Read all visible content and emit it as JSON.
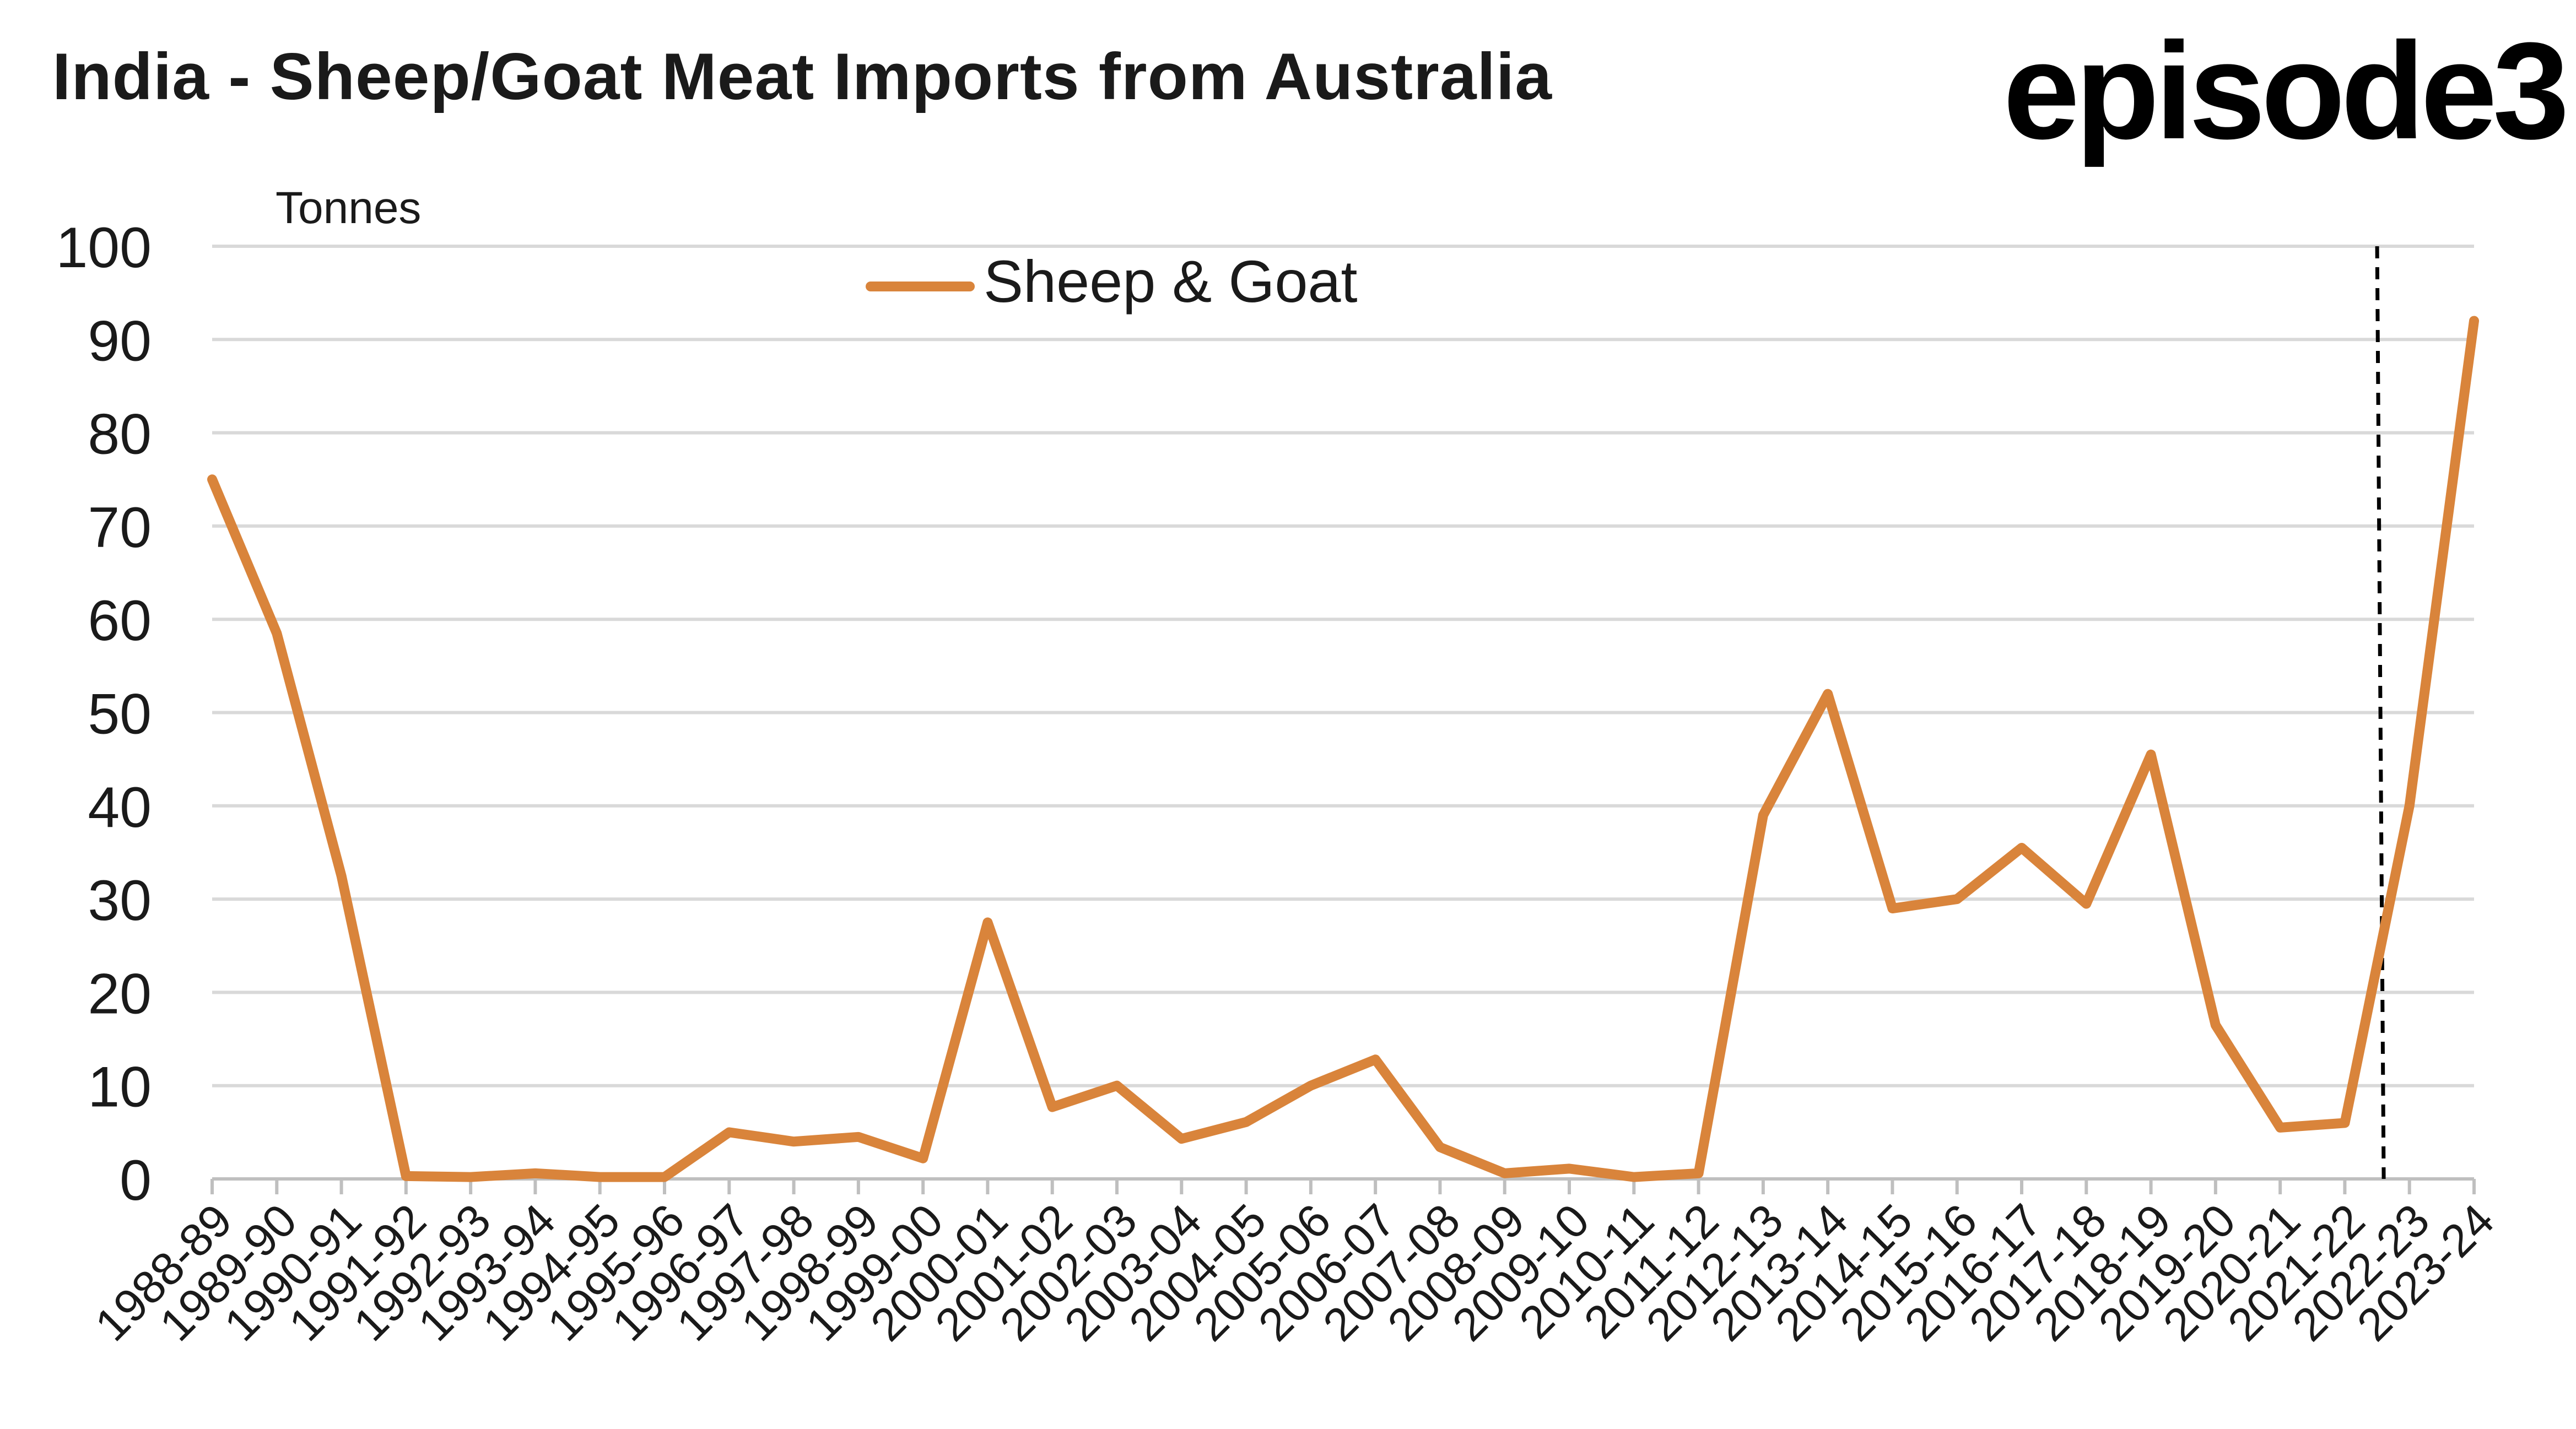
{
  "title": "India - Sheep/Goat Meat Imports from Australia",
  "logo_text": "episode3",
  "chart_data": {
    "type": "line",
    "title": "India - Sheep/Goat Meat Imports from Australia",
    "ylabel": "Tonnes",
    "xlabel": "",
    "ylim": [
      0,
      100
    ],
    "yticks": [
      0,
      10,
      20,
      30,
      40,
      50,
      60,
      70,
      80,
      90,
      100
    ],
    "grid": true,
    "legend_position": "top-center",
    "categories": [
      "1988-89",
      "1989-90",
      "1990-91",
      "1991-92",
      "1992-93",
      "1993-94",
      "1994-95",
      "1995-96",
      "1996-97",
      "1997-98",
      "1998-99",
      "1999-00",
      "2000-01",
      "2001-02",
      "2002-03",
      "2003-04",
      "2004-05",
      "2005-06",
      "2006-07",
      "2007-08",
      "2008-09",
      "2009-10",
      "2010-11",
      "2011-12",
      "2012-13",
      "2013-14",
      "2014-15",
      "2015-16",
      "2016-17",
      "2017-18",
      "2018-19",
      "2019-20",
      "2020-21",
      "2021-22",
      "2022-23",
      "2023-24"
    ],
    "series": [
      {
        "name": "Sheep & Goat",
        "color": "#d9843b",
        "values": [
          75,
          58.5,
          32.5,
          0.3,
          0.2,
          0.6,
          0.2,
          0.2,
          5,
          4,
          4.5,
          2.2,
          27.5,
          7.7,
          10,
          4.3,
          6.1,
          10,
          12.8,
          3.4,
          0.6,
          1.1,
          0.2,
          0.6,
          39,
          52,
          29,
          30,
          35.5,
          29.5,
          45.5,
          16.5,
          5.5,
          6,
          40,
          92
        ]
      }
    ],
    "vline_between": [
      "2021-22",
      "2022-23"
    ]
  }
}
